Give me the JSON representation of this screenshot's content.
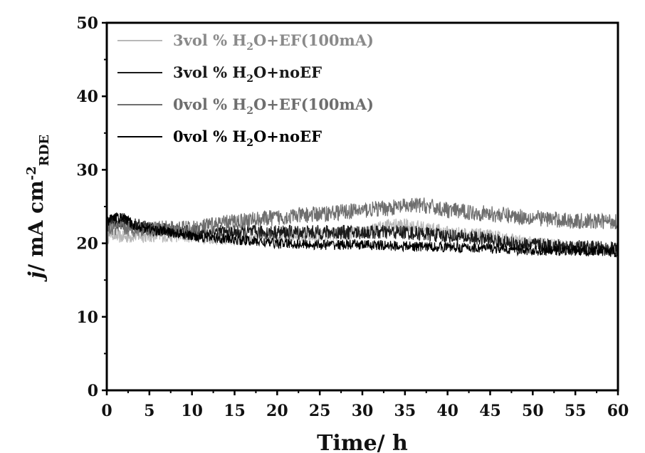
{
  "chart_data": {
    "type": "line",
    "title": "",
    "xlabel": "Time/ h",
    "ylabel": "j/ mA cm^-2 RDE",
    "ylabel_parts": {
      "italic": "j",
      "main": "/ mA cm",
      "sup": "-2",
      "sub": "RDE"
    },
    "xlim": [
      0,
      60
    ],
    "ylim": [
      0,
      50
    ],
    "xticks": [
      0,
      5,
      10,
      15,
      20,
      25,
      30,
      35,
      40,
      45,
      50,
      55,
      60
    ],
    "yticks": [
      0,
      10,
      20,
      30,
      40,
      50
    ],
    "grid": false,
    "legend_position": "top-left",
    "series": [
      {
        "name": "3vol % H2O+EF(100mA)",
        "label_parts": {
          "pre": "3vol % H",
          "sub": "2",
          "post": "O+EF(100mA)"
        },
        "color": "#b8b8b8",
        "noise": 0.9,
        "x": [
          0,
          0.5,
          1,
          2,
          3,
          5,
          10,
          15,
          20,
          25,
          30,
          33,
          35,
          38,
          40,
          45,
          47,
          50,
          55,
          60
        ],
        "y": [
          20.5,
          21.5,
          21.0,
          20.8,
          21.0,
          21.0,
          21.0,
          20.5,
          21.0,
          21.0,
          21.5,
          22.5,
          22.5,
          22.0,
          21.5,
          21.0,
          20.5,
          20.0,
          19.5,
          19.0
        ]
      },
      {
        "name": "3vol % H2O+noEF",
        "label_parts": {
          "pre": "3vol % H",
          "sub": "2",
          "post": "O+noEF"
        },
        "color": "#1a1a1a",
        "noise": 1.0,
        "x": [
          0,
          1,
          3,
          5,
          10,
          15,
          20,
          25,
          30,
          35,
          40,
          45,
          47,
          50,
          55,
          60
        ],
        "y": [
          22.5,
          23.0,
          22.5,
          22.0,
          21.5,
          21.5,
          21.5,
          21.5,
          21.5,
          21.5,
          21.0,
          20.5,
          20.0,
          19.8,
          19.5,
          19.2
        ]
      },
      {
        "name": "0vol % H2O+EF(100mA)",
        "label_parts": {
          "pre": "0vol % H",
          "sub": "2",
          "post": "O+EF(100mA)"
        },
        "color": "#6e6e6e",
        "noise": 1.1,
        "x": [
          0,
          1,
          3,
          5,
          10,
          15,
          20,
          25,
          30,
          35,
          37,
          40,
          45,
          50,
          55,
          60
        ],
        "y": [
          22.0,
          22.0,
          22.0,
          22.0,
          22.0,
          23.0,
          23.5,
          24.0,
          24.5,
          25.0,
          25.2,
          24.5,
          24.0,
          23.5,
          23.0,
          23.0
        ]
      },
      {
        "name": "0vol % H2O+noEF",
        "label_parts": {
          "pre": "0vol % H",
          "sub": "2",
          "post": "O+noEF"
        },
        "color": "#000000",
        "noise": 0.7,
        "x": [
          0,
          1,
          2,
          3,
          5,
          10,
          15,
          20,
          25,
          30,
          35,
          40,
          45,
          50,
          55,
          60
        ],
        "y": [
          23.0,
          23.5,
          23.5,
          22.5,
          22.0,
          21.0,
          20.5,
          20.0,
          19.8,
          19.8,
          19.6,
          19.5,
          19.3,
          19.0,
          19.0,
          18.8
        ]
      }
    ]
  }
}
